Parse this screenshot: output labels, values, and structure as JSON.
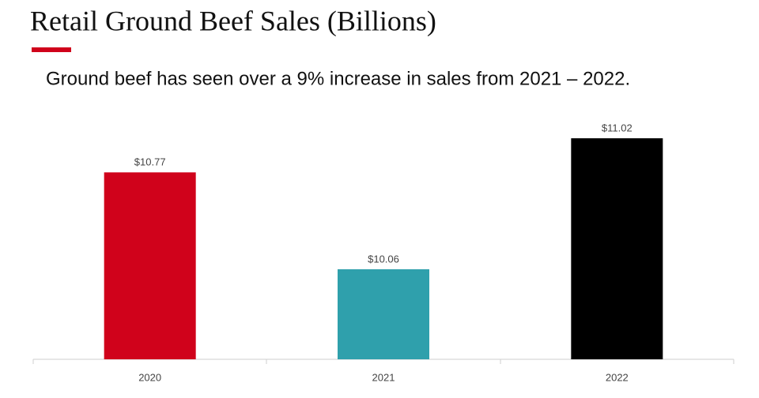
{
  "chart_data": {
    "type": "bar",
    "title": "Retail Ground Beef Sales (Billions)",
    "subtitle": "Ground beef has seen over a 9% increase in sales from 2021 – 2022.",
    "categories": [
      "2020",
      "2021",
      "2022"
    ],
    "values": [
      10.77,
      10.06,
      11.02
    ],
    "value_labels": [
      "$10.77",
      "$10.06",
      "$11.02"
    ],
    "colors": [
      "#d0021b",
      "#2fa0ac",
      "#000000"
    ],
    "ylim": [
      9.4,
      11.2
    ]
  }
}
